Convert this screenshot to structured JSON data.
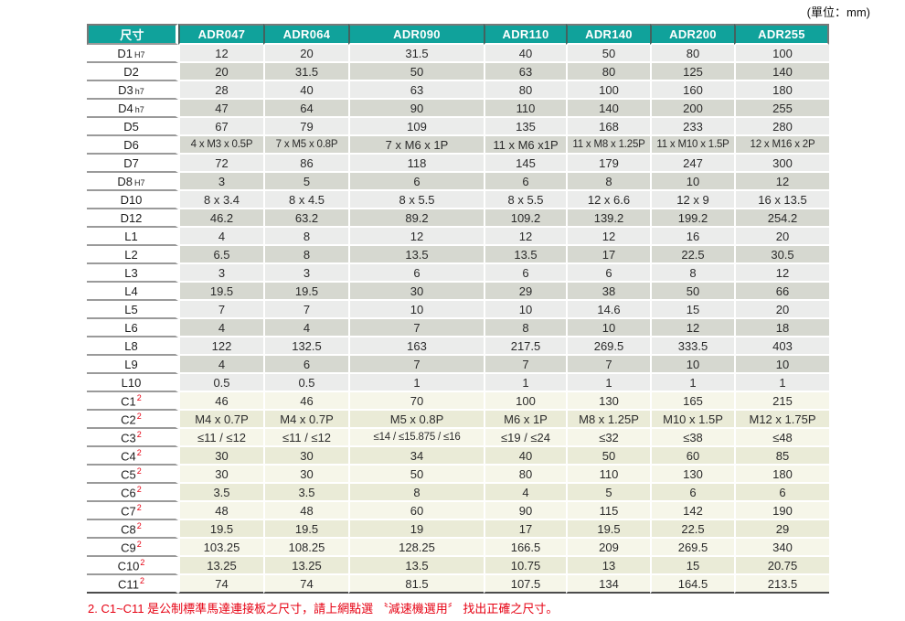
{
  "unit_label": "(單位：mm)",
  "colors": {
    "header_teal": "#10a29b",
    "footnote_red": "#e60012"
  },
  "table": {
    "header": [
      "尺寸",
      "ADR047",
      "ADR064",
      "ADR090",
      "ADR110",
      "ADR140",
      "ADR200",
      "ADR255"
    ],
    "rows": [
      {
        "label": "D1",
        "sub": "H7",
        "sup": "",
        "section": "gray",
        "values": [
          "12",
          "20",
          "31.5",
          "40",
          "50",
          "80",
          "100"
        ]
      },
      {
        "label": "D2",
        "sub": "",
        "sup": "",
        "section": "gray",
        "values": [
          "20",
          "31.5",
          "50",
          "63",
          "80",
          "125",
          "140"
        ]
      },
      {
        "label": "D3",
        "sub": "h7",
        "sup": "",
        "section": "gray",
        "values": [
          "28",
          "40",
          "63",
          "80",
          "100",
          "160",
          "180"
        ]
      },
      {
        "label": "D4",
        "sub": "h7",
        "sup": "",
        "section": "gray",
        "values": [
          "47",
          "64",
          "90",
          "110",
          "140",
          "200",
          "255"
        ]
      },
      {
        "label": "D5",
        "sub": "",
        "sup": "",
        "section": "gray",
        "values": [
          "67",
          "79",
          "109",
          "135",
          "168",
          "233",
          "280"
        ]
      },
      {
        "label": "D6",
        "sub": "",
        "sup": "",
        "section": "gray",
        "values": [
          "4 x M3 x 0.5P",
          "7 x M5 x 0.8P",
          "7 x M6 x 1P",
          "11 x M6 x1P",
          "11 x M8 x 1.25P",
          "11 x M10 x 1.5P",
          "12 x M16 x 2P"
        ]
      },
      {
        "label": "D7",
        "sub": "",
        "sup": "",
        "section": "gray",
        "values": [
          "72",
          "86",
          "118",
          "145",
          "179",
          "247",
          "300"
        ]
      },
      {
        "label": "D8",
        "sub": "H7",
        "sup": "",
        "section": "gray",
        "values": [
          "3",
          "5",
          "6",
          "6",
          "8",
          "10",
          "12"
        ]
      },
      {
        "label": "D10",
        "sub": "",
        "sup": "",
        "section": "gray",
        "values": [
          "8 x 3.4",
          "8 x 4.5",
          "8 x 5.5",
          "8 x 5.5",
          "12 x 6.6",
          "12 x 9",
          "16 x 13.5"
        ]
      },
      {
        "label": "D12",
        "sub": "",
        "sup": "",
        "section": "gray",
        "values": [
          "46.2",
          "63.2",
          "89.2",
          "109.2",
          "139.2",
          "199.2",
          "254.2"
        ]
      },
      {
        "label": "L1",
        "sub": "",
        "sup": "",
        "section": "gray",
        "values": [
          "4",
          "8",
          "12",
          "12",
          "12",
          "16",
          "20"
        ]
      },
      {
        "label": "L2",
        "sub": "",
        "sup": "",
        "section": "gray",
        "values": [
          "6.5",
          "8",
          "13.5",
          "13.5",
          "17",
          "22.5",
          "30.5"
        ]
      },
      {
        "label": "L3",
        "sub": "",
        "sup": "",
        "section": "gray",
        "values": [
          "3",
          "3",
          "6",
          "6",
          "6",
          "8",
          "12"
        ]
      },
      {
        "label": "L4",
        "sub": "",
        "sup": "",
        "section": "gray",
        "values": [
          "19.5",
          "19.5",
          "30",
          "29",
          "38",
          "50",
          "66"
        ]
      },
      {
        "label": "L5",
        "sub": "",
        "sup": "",
        "section": "gray",
        "values": [
          "7",
          "7",
          "10",
          "10",
          "14.6",
          "15",
          "20"
        ]
      },
      {
        "label": "L6",
        "sub": "",
        "sup": "",
        "section": "gray",
        "values": [
          "4",
          "4",
          "7",
          "8",
          "10",
          "12",
          "18"
        ]
      },
      {
        "label": "L8",
        "sub": "",
        "sup": "",
        "section": "gray",
        "values": [
          "122",
          "132.5",
          "163",
          "217.5",
          "269.5",
          "333.5",
          "403"
        ]
      },
      {
        "label": "L9",
        "sub": "",
        "sup": "",
        "section": "gray",
        "values": [
          "4",
          "6",
          "7",
          "7",
          "7",
          "10",
          "10"
        ]
      },
      {
        "label": "L10",
        "sub": "",
        "sup": "",
        "section": "gray",
        "values": [
          "0.5",
          "0.5",
          "1",
          "1",
          "1",
          "1",
          "1"
        ]
      },
      {
        "label": "C1",
        "sub": "",
        "sup": "2",
        "section": "cream",
        "values": [
          "46",
          "46",
          "70",
          "100",
          "130",
          "165",
          "215"
        ]
      },
      {
        "label": "C2",
        "sub": "",
        "sup": "2",
        "section": "cream",
        "values": [
          "M4 x 0.7P",
          "M4 x 0.7P",
          "M5 x 0.8P",
          "M6 x 1P",
          "M8 x 1.25P",
          "M10 x 1.5P",
          "M12 x 1.75P"
        ]
      },
      {
        "label": "C3",
        "sub": "",
        "sup": "2",
        "section": "cream",
        "values": [
          "≤11 / ≤12",
          "≤11 / ≤12",
          "≤14 / ≤15.875 / ≤16",
          "≤19 / ≤24",
          "≤32",
          "≤38",
          "≤48"
        ]
      },
      {
        "label": "C4",
        "sub": "",
        "sup": "2",
        "section": "cream",
        "values": [
          "30",
          "30",
          "34",
          "40",
          "50",
          "60",
          "85"
        ]
      },
      {
        "label": "C5",
        "sub": "",
        "sup": "2",
        "section": "cream",
        "values": [
          "30",
          "30",
          "50",
          "80",
          "110",
          "130",
          "180"
        ]
      },
      {
        "label": "C6",
        "sub": "",
        "sup": "2",
        "section": "cream",
        "values": [
          "3.5",
          "3.5",
          "8",
          "4",
          "5",
          "6",
          "6"
        ]
      },
      {
        "label": "C7",
        "sub": "",
        "sup": "2",
        "section": "cream",
        "values": [
          "48",
          "48",
          "60",
          "90",
          "115",
          "142",
          "190"
        ]
      },
      {
        "label": "C8",
        "sub": "",
        "sup": "2",
        "section": "cream",
        "values": [
          "19.5",
          "19.5",
          "19",
          "17",
          "19.5",
          "22.5",
          "29"
        ]
      },
      {
        "label": "C9",
        "sub": "",
        "sup": "2",
        "section": "cream",
        "values": [
          "103.25",
          "108.25",
          "128.25",
          "166.5",
          "209",
          "269.5",
          "340"
        ]
      },
      {
        "label": "C10",
        "sub": "",
        "sup": "2",
        "section": "cream",
        "values": [
          "13.25",
          "13.25",
          "13.5",
          "10.75",
          "13",
          "15",
          "20.75"
        ]
      },
      {
        "label": "C11",
        "sub": "",
        "sup": "2",
        "section": "cream",
        "values": [
          "74",
          "74",
          "81.5",
          "107.5",
          "134",
          "164.5",
          "213.5"
        ]
      }
    ]
  },
  "footnote": "2. C1~C11 是公制標準馬達連接板之尺寸，請上網點選 〝減速機選用〞 找出正確之尺寸。"
}
